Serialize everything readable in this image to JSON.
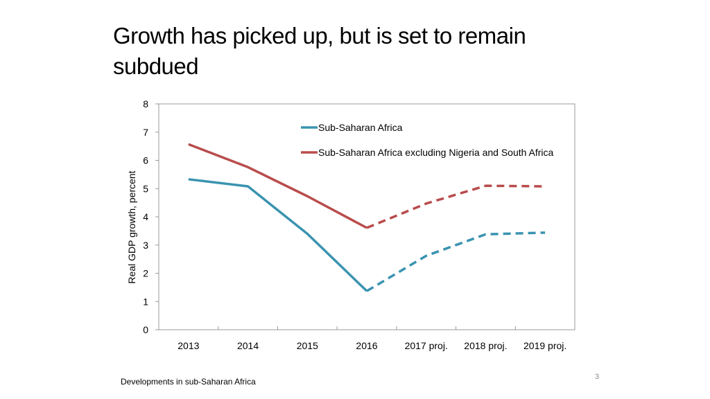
{
  "slide": {
    "title_line1": "Growth has picked up, but is set to remain",
    "title_line2": "subdued",
    "footer": "Developments in sub-Saharan Africa",
    "page_number": "3"
  },
  "chart_data": {
    "type": "line",
    "title": "",
    "xlabel": "",
    "ylabel": "Real GDP growth, percent",
    "ylim": [
      0,
      8
    ],
    "yticks": [
      0,
      1,
      2,
      3,
      4,
      5,
      6,
      7,
      8
    ],
    "categories": [
      "2013",
      "2014",
      "2015",
      "2016",
      "2017 proj.",
      "2018 proj.",
      "2019 proj."
    ],
    "projection_starts_after": "2016",
    "grid": false,
    "legend_position": "top-right",
    "series": [
      {
        "name": "Sub-Saharan Africa",
        "color": "#3a93b0",
        "values": [
          5.33,
          5.08,
          3.4,
          1.37,
          2.62,
          3.38,
          3.44
        ]
      },
      {
        "name": "Sub-Saharan Africa excluding Nigeria and South Africa",
        "color": "#b94c4c",
        "values": [
          6.57,
          5.76,
          4.73,
          3.61,
          4.47,
          5.1,
          5.08
        ]
      }
    ]
  }
}
